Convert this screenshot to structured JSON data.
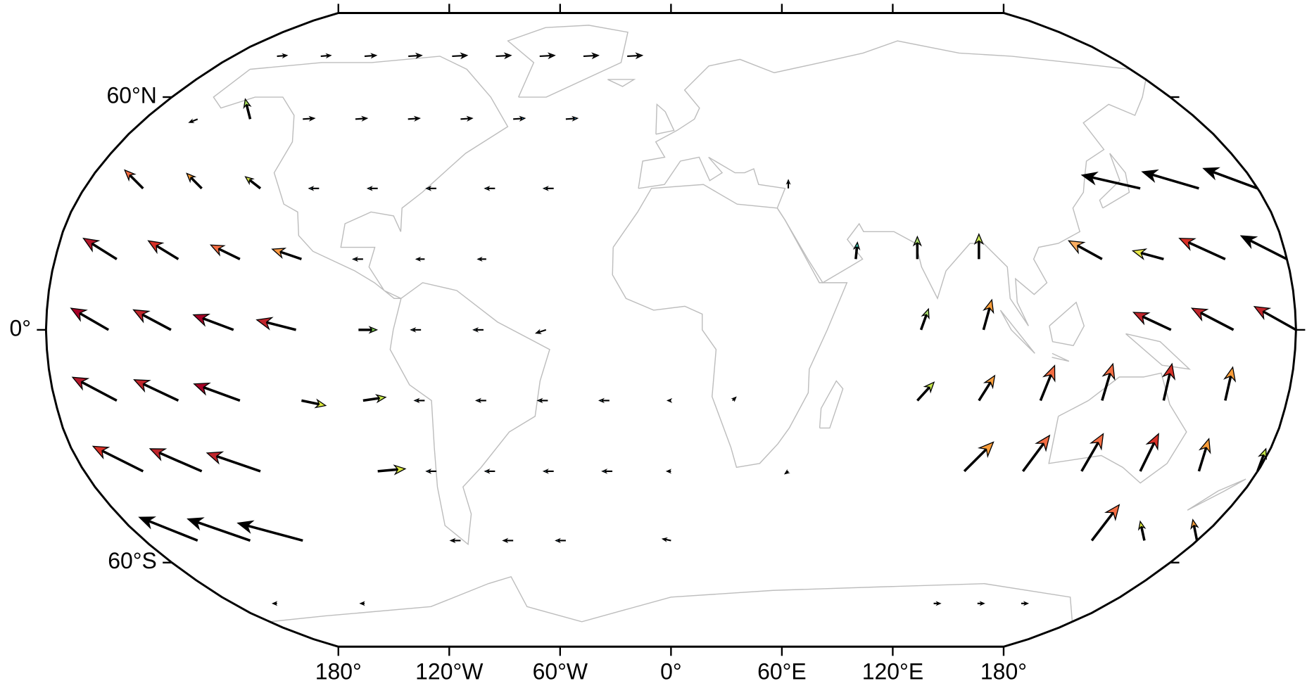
{
  "map": {
    "lat_labels": [
      {
        "value": 60,
        "label": "60°N"
      },
      {
        "value": 0,
        "label": "0°"
      },
      {
        "value": -60,
        "label": "60°S"
      }
    ],
    "lon_labels": [
      {
        "value": -180,
        "label": "180°"
      },
      {
        "value": -120,
        "label": "120°W"
      },
      {
        "value": -60,
        "label": "60°W"
      },
      {
        "value": 0,
        "label": "0°"
      },
      {
        "value": 60,
        "label": "60°E"
      },
      {
        "value": 120,
        "label": "120°E"
      },
      {
        "value": 180,
        "label": "180°"
      }
    ],
    "vectors": [
      [
        -162,
        72,
        12,
        1,
        "#1a1a1a"
      ],
      [
        -144,
        72,
        12,
        1,
        "#1a1a1a"
      ],
      [
        -126,
        72,
        14,
        1,
        "#1a1a1a"
      ],
      [
        -108,
        72,
        16,
        1,
        "#1a1a1a"
      ],
      [
        -90,
        72,
        18,
        1,
        "#1a1a1a"
      ],
      [
        -72,
        72,
        18,
        1,
        "#1a1a1a"
      ],
      [
        -54,
        72,
        18,
        1,
        "#1a1a1a"
      ],
      [
        -36,
        72,
        18,
        1,
        "#1a1a1a"
      ],
      [
        -18,
        72,
        18,
        1,
        "#1a1a1a"
      ],
      [
        -162,
        54,
        -10,
        -4,
        "#000000"
      ],
      [
        -144,
        54,
        -6,
        24,
        "#a6e05a"
      ],
      [
        -126,
        54,
        14,
        1,
        "#1a1a1a"
      ],
      [
        -108,
        54,
        14,
        1,
        "#1a1a1a"
      ],
      [
        -90,
        54,
        14,
        1,
        "#1a1a1a"
      ],
      [
        -72,
        54,
        14,
        1,
        "#1a1a1a"
      ],
      [
        -54,
        54,
        14,
        1,
        "#3b8bc2"
      ],
      [
        -36,
        54,
        14,
        1,
        "#3b8bc2"
      ],
      [
        -162,
        36,
        -22,
        22,
        "#f46d43"
      ],
      [
        -144,
        36,
        -18,
        18,
        "#f99d3a"
      ],
      [
        -126,
        36,
        -18,
        14,
        "#d5e74a"
      ],
      [
        -108,
        36,
        -12,
        0,
        "#69b8dc"
      ],
      [
        -90,
        36,
        -12,
        0,
        "#69b8dc"
      ],
      [
        -72,
        36,
        -12,
        0,
        "#69b8dc"
      ],
      [
        -54,
        36,
        -12,
        0,
        "#69b8dc"
      ],
      [
        -36,
        36,
        -12,
        0,
        "#69b8dc"
      ],
      [
        36,
        36,
        0,
        10,
        "#5cc2d6"
      ],
      [
        144,
        36,
        -70,
        16,
        "#000000"
      ],
      [
        162,
        36,
        -68,
        20,
        "#000000"
      ],
      [
        180,
        36,
        -65,
        24,
        "#000000"
      ],
      [
        -162,
        18,
        -40,
        25,
        "#b2182b"
      ],
      [
        -144,
        18,
        -36,
        22,
        "#d73027"
      ],
      [
        -126,
        18,
        -35,
        17,
        "#f46d43"
      ],
      [
        -108,
        18,
        -35,
        12,
        "#fb9a44"
      ],
      [
        -90,
        18,
        -12,
        0,
        "#69b8dc"
      ],
      [
        -72,
        18,
        -10,
        0,
        "#69b8dc"
      ],
      [
        -54,
        18,
        -10,
        0,
        "#69b8dc"
      ],
      [
        54,
        18,
        2,
        20,
        "#3fc9b4"
      ],
      [
        72,
        18,
        0,
        27,
        "#a6d96a"
      ],
      [
        90,
        18,
        0,
        30,
        "#cbe85a"
      ],
      [
        126,
        18,
        -40,
        22,
        "#fdae61"
      ],
      [
        144,
        18,
        -37,
        10,
        "#e8e84a"
      ],
      [
        162,
        18,
        -55,
        25,
        "#d73027"
      ],
      [
        180,
        18,
        -55,
        28,
        "#000000"
      ],
      [
        -162,
        0,
        -45,
        26,
        "#a50026"
      ],
      [
        -144,
        0,
        -45,
        24,
        "#c0262c"
      ],
      [
        -126,
        0,
        -48,
        18,
        "#a50026"
      ],
      [
        -108,
        0,
        -47,
        12,
        "#c0262c"
      ],
      [
        -90,
        0,
        22,
        0,
        "#7fd353"
      ],
      [
        -72,
        0,
        -12,
        0,
        "#69b8dc"
      ],
      [
        -54,
        0,
        -12,
        0,
        "#69b8dc"
      ],
      [
        -36,
        0,
        -12,
        -4,
        "#000000"
      ],
      [
        72,
        0,
        9,
        25,
        "#a6d96a"
      ],
      [
        90,
        0,
        10,
        36,
        "#f99d3a"
      ],
      [
        144,
        0,
        -45,
        21,
        "#c0262c"
      ],
      [
        162,
        0,
        -50,
        26,
        "#c0262c"
      ],
      [
        180,
        0,
        -50,
        28,
        "#c0262c"
      ],
      [
        -162,
        -18,
        -53,
        28,
        "#b2182b"
      ],
      [
        -144,
        -18,
        -53,
        25,
        "#c0262c"
      ],
      [
        -126,
        -18,
        -55,
        20,
        "#a50026"
      ],
      [
        -108,
        -18,
        29,
        -6,
        "#dcea3e"
      ],
      [
        -90,
        -18,
        27,
        4,
        "#c6e84a"
      ],
      [
        -72,
        -18,
        -12,
        0,
        "#69b8dc"
      ],
      [
        -54,
        -18,
        -12,
        0,
        "#69b8dc"
      ],
      [
        -36,
        -18,
        -12,
        0,
        "#69b8dc"
      ],
      [
        -18,
        -18,
        -12,
        0,
        "#69b8dc"
      ],
      [
        0,
        -18,
        -4,
        0,
        "#000000"
      ],
      [
        18,
        -18,
        4,
        4,
        "#000000"
      ],
      [
        72,
        -18,
        20,
        22,
        "#c6e84a"
      ],
      [
        90,
        -18,
        19,
        30,
        "#f99d3a"
      ],
      [
        108,
        -18,
        17,
        42,
        "#f46d43"
      ],
      [
        126,
        -18,
        13,
        44,
        "#f46d43"
      ],
      [
        144,
        -18,
        10,
        44,
        "#d73027"
      ],
      [
        162,
        -18,
        9,
        40,
        "#f99d3a"
      ],
      [
        -162,
        -36,
        -60,
        30,
        "#d73027"
      ],
      [
        -144,
        -36,
        -62,
        27,
        "#c0262c"
      ],
      [
        -126,
        -36,
        -64,
        22,
        "#c0262c"
      ],
      [
        -90,
        -36,
        33,
        3,
        "#dcea3e"
      ],
      [
        -72,
        -36,
        -12,
        0,
        "#69b8dc"
      ],
      [
        -54,
        -36,
        -12,
        0,
        "#69b8dc"
      ],
      [
        -36,
        -36,
        -12,
        0,
        "#69b8dc"
      ],
      [
        -18,
        -36,
        -12,
        0,
        "#69b8dc"
      ],
      [
        0,
        -36,
        -5,
        0,
        "#000000"
      ],
      [
        36,
        -36,
        -4,
        -3,
        "#000000"
      ],
      [
        90,
        -36,
        35,
        35,
        "#f99d3a"
      ],
      [
        108,
        -36,
        32,
        43,
        "#f46d43"
      ],
      [
        126,
        -36,
        26,
        45,
        "#f46d43"
      ],
      [
        144,
        -36,
        22,
        45,
        "#d73027"
      ],
      [
        162,
        -36,
        12,
        39,
        "#f99d3a"
      ],
      [
        180,
        -36,
        10,
        27,
        "#c6e84a"
      ],
      [
        -162,
        -54,
        -70,
        28,
        "#000000"
      ],
      [
        -144,
        -54,
        -75,
        26,
        "#000000"
      ],
      [
        -126,
        -54,
        -78,
        21,
        "#000000"
      ],
      [
        -72,
        -54,
        -12,
        0,
        "#000000"
      ],
      [
        -54,
        -54,
        -12,
        0,
        "#000000"
      ],
      [
        -36,
        -54,
        -12,
        0,
        "#3b8bc2"
      ],
      [
        0,
        -54,
        -10,
        2,
        "#000000"
      ],
      [
        144,
        -54,
        33,
        43,
        "#f46d43"
      ],
      [
        162,
        -54,
        -5,
        23,
        "#dcea3e"
      ],
      [
        180,
        -54,
        -5,
        25,
        "#f99d3a"
      ],
      [
        -162,
        -72,
        -5,
        0,
        "#000000"
      ],
      [
        -126,
        -72,
        -5,
        0,
        "#000000"
      ],
      [
        108,
        -72,
        8,
        0,
        "#000000"
      ],
      [
        126,
        -72,
        8,
        0,
        "#000000"
      ],
      [
        144,
        -72,
        8,
        0,
        "#000000"
      ]
    ]
  }
}
